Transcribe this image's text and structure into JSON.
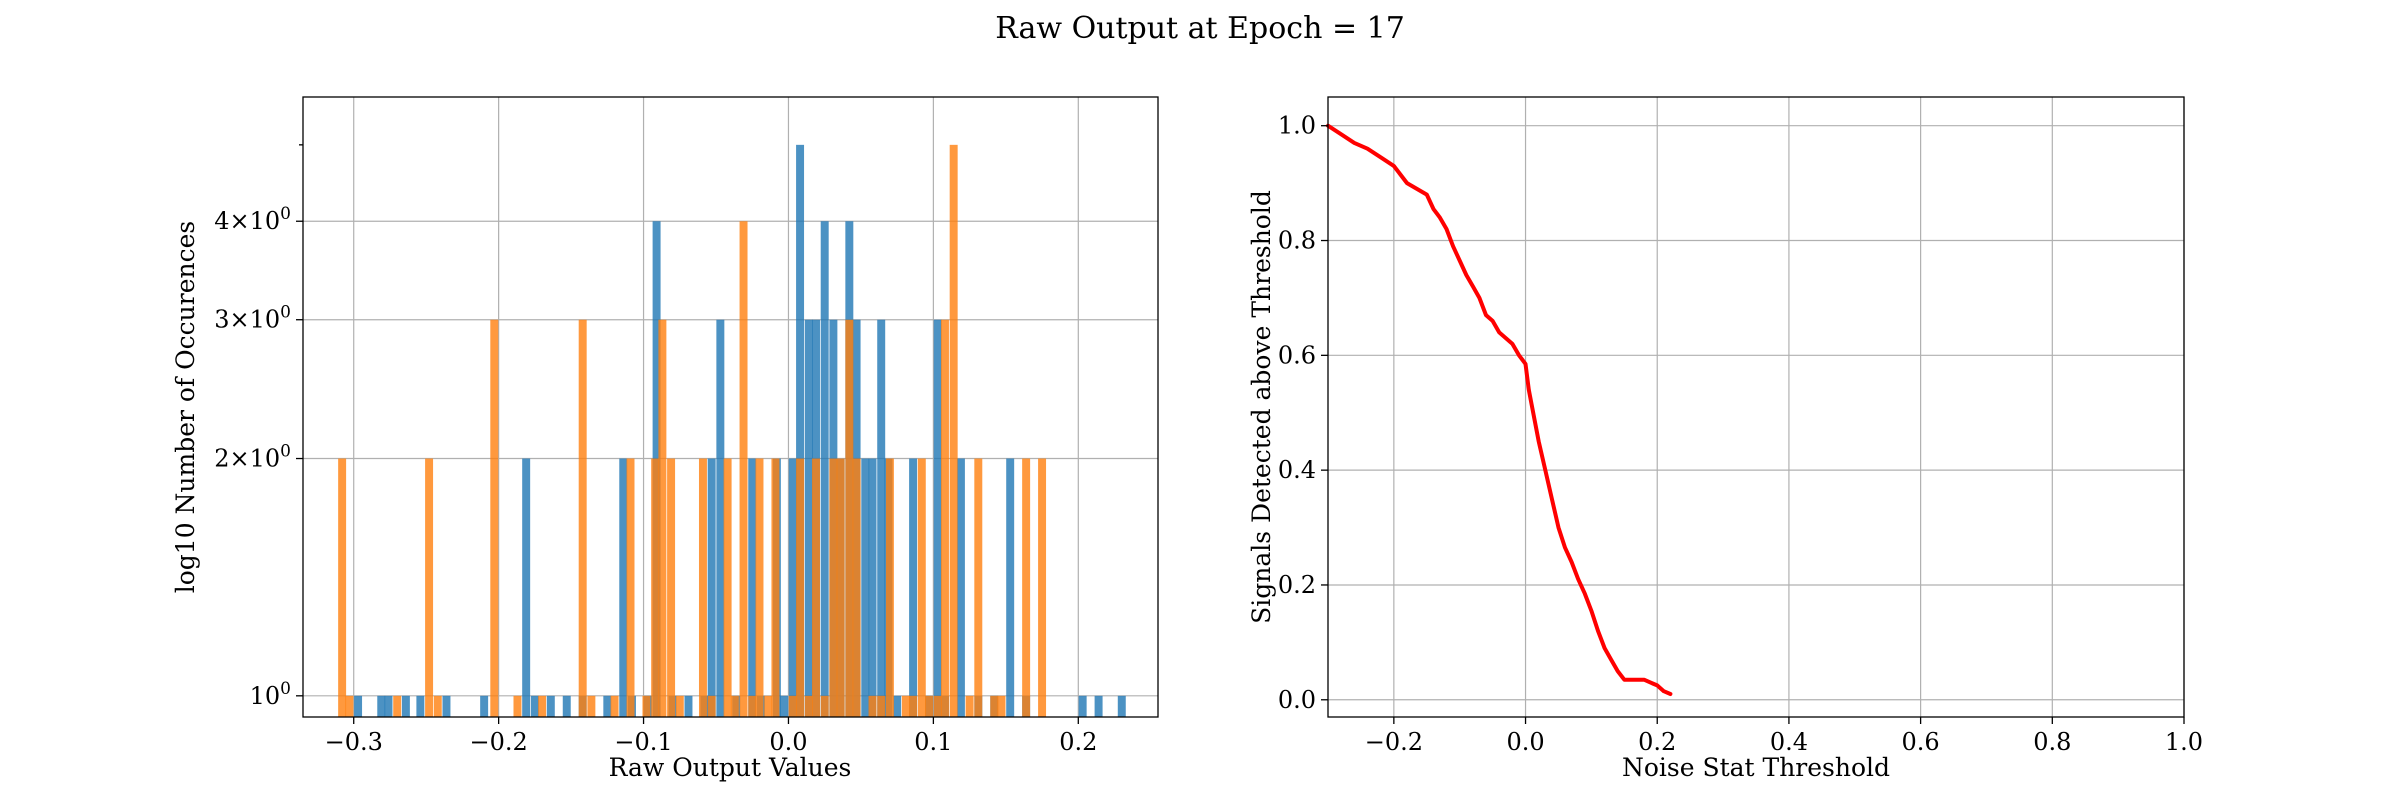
{
  "figure": {
    "suptitle": "Raw Output at Epoch = 17"
  },
  "colors": {
    "series_a": "#1f77b4",
    "series_b": "#ff7f0e",
    "line": "#ff0000",
    "grid": "#b0b0b0"
  },
  "chart_data": [
    {
      "type": "bar",
      "subtype": "histogram",
      "xlabel": "Raw Output Values",
      "ylabel": "log10 Number of Occurences",
      "yscale": "log",
      "xlim": [
        -0.335,
        0.255
      ],
      "ylim": [
        0.94,
        5.75
      ],
      "bin_width": 0.0055,
      "grid": true,
      "x_ticks": [
        {
          "v": -0.3,
          "label": "−0.3"
        },
        {
          "v": -0.2,
          "label": "−0.2"
        },
        {
          "v": -0.1,
          "label": "−0.1"
        },
        {
          "v": 0.0,
          "label": "0.0"
        },
        {
          "v": 0.1,
          "label": "0.1"
        },
        {
          "v": 0.2,
          "label": "0.2"
        }
      ],
      "y_ticks": [
        {
          "v": 1,
          "label": "10⁰",
          "mantissa": ""
        },
        {
          "v": 2,
          "label": "2×10⁰",
          "mantissa": "2×"
        },
        {
          "v": 3,
          "label": "3×10⁰",
          "mantissa": "3×"
        },
        {
          "v": 4,
          "label": "4×10⁰",
          "mantissa": "4×"
        }
      ],
      "series": [
        {
          "color": "#1f77b4",
          "bins": [
            {
              "x": -0.297,
              "count": 1
            },
            {
              "x": -0.281,
              "count": 1
            },
            {
              "x": -0.276,
              "count": 1
            },
            {
              "x": -0.264,
              "count": 1
            },
            {
              "x": -0.254,
              "count": 1
            },
            {
              "x": -0.236,
              "count": 1
            },
            {
              "x": -0.21,
              "count": 1
            },
            {
              "x": -0.181,
              "count": 2
            },
            {
              "x": -0.175,
              "count": 1
            },
            {
              "x": -0.164,
              "count": 1
            },
            {
              "x": -0.153,
              "count": 1
            },
            {
              "x": -0.142,
              "count": 1
            },
            {
              "x": -0.125,
              "count": 1
            },
            {
              "x": -0.114,
              "count": 2
            },
            {
              "x": -0.108,
              "count": 1
            },
            {
              "x": -0.097,
              "count": 1
            },
            {
              "x": -0.091,
              "count": 4
            },
            {
              "x": -0.08,
              "count": 1
            },
            {
              "x": -0.069,
              "count": 1
            },
            {
              "x": -0.058,
              "count": 1
            },
            {
              "x": -0.053,
              "count": 2
            },
            {
              "x": -0.047,
              "count": 3
            },
            {
              "x": -0.036,
              "count": 1
            },
            {
              "x": -0.025,
              "count": 2
            },
            {
              "x": -0.019,
              "count": 1
            },
            {
              "x": -0.008,
              "count": 2
            },
            {
              "x": -0.003,
              "count": 1
            },
            {
              "x": 0.003,
              "count": 2
            },
            {
              "x": 0.008,
              "count": 5
            },
            {
              "x": 0.014,
              "count": 3
            },
            {
              "x": 0.019,
              "count": 3
            },
            {
              "x": 0.025,
              "count": 4
            },
            {
              "x": 0.031,
              "count": 3
            },
            {
              "x": 0.036,
              "count": 2
            },
            {
              "x": 0.042,
              "count": 4
            },
            {
              "x": 0.047,
              "count": 3
            },
            {
              "x": 0.053,
              "count": 2
            },
            {
              "x": 0.058,
              "count": 2
            },
            {
              "x": 0.064,
              "count": 3
            },
            {
              "x": 0.069,
              "count": 2
            },
            {
              "x": 0.075,
              "count": 1
            },
            {
              "x": 0.086,
              "count": 2
            },
            {
              "x": 0.097,
              "count": 1
            },
            {
              "x": 0.103,
              "count": 3
            },
            {
              "x": 0.108,
              "count": 1
            },
            {
              "x": 0.119,
              "count": 2
            },
            {
              "x": 0.131,
              "count": 1
            },
            {
              "x": 0.142,
              "count": 1
            },
            {
              "x": 0.153,
              "count": 2
            },
            {
              "x": 0.164,
              "count": 1
            },
            {
              "x": 0.203,
              "count": 1
            },
            {
              "x": 0.214,
              "count": 1
            },
            {
              "x": 0.23,
              "count": 1
            }
          ]
        },
        {
          "color": "#ff7f0e",
          "bins": [
            {
              "x": -0.308,
              "count": 2
            },
            {
              "x": -0.303,
              "count": 1
            },
            {
              "x": -0.27,
              "count": 1
            },
            {
              "x": -0.248,
              "count": 2
            },
            {
              "x": -0.242,
              "count": 1
            },
            {
              "x": -0.203,
              "count": 3
            },
            {
              "x": -0.187,
              "count": 1
            },
            {
              "x": -0.17,
              "count": 1
            },
            {
              "x": -0.142,
              "count": 3
            },
            {
              "x": -0.136,
              "count": 1
            },
            {
              "x": -0.12,
              "count": 1
            },
            {
              "x": -0.109,
              "count": 2
            },
            {
              "x": -0.098,
              "count": 1
            },
            {
              "x": -0.092,
              "count": 2
            },
            {
              "x": -0.087,
              "count": 3
            },
            {
              "x": -0.081,
              "count": 2
            },
            {
              "x": -0.075,
              "count": 1
            },
            {
              "x": -0.059,
              "count": 2
            },
            {
              "x": -0.053,
              "count": 1
            },
            {
              "x": -0.042,
              "count": 2
            },
            {
              "x": -0.037,
              "count": 1
            },
            {
              "x": -0.031,
              "count": 4
            },
            {
              "x": -0.025,
              "count": 1
            },
            {
              "x": -0.02,
              "count": 2
            },
            {
              "x": -0.014,
              "count": 1
            },
            {
              "x": -0.009,
              "count": 2
            },
            {
              "x": 0.003,
              "count": 1
            },
            {
              "x": 0.008,
              "count": 2
            },
            {
              "x": 0.014,
              "count": 1
            },
            {
              "x": 0.019,
              "count": 2
            },
            {
              "x": 0.025,
              "count": 1
            },
            {
              "x": 0.031,
              "count": 2
            },
            {
              "x": 0.036,
              "count": 2
            },
            {
              "x": 0.042,
              "count": 3
            },
            {
              "x": 0.047,
              "count": 2
            },
            {
              "x": 0.058,
              "count": 1
            },
            {
              "x": 0.064,
              "count": 1
            },
            {
              "x": 0.07,
              "count": 2
            },
            {
              "x": 0.081,
              "count": 1
            },
            {
              "x": 0.086,
              "count": 1
            },
            {
              "x": 0.092,
              "count": 2
            },
            {
              "x": 0.097,
              "count": 1
            },
            {
              "x": 0.103,
              "count": 1
            },
            {
              "x": 0.108,
              "count": 3
            },
            {
              "x": 0.114,
              "count": 5
            },
            {
              "x": 0.125,
              "count": 1
            },
            {
              "x": 0.131,
              "count": 2
            },
            {
              "x": 0.142,
              "count": 1
            },
            {
              "x": 0.147,
              "count": 1
            },
            {
              "x": 0.164,
              "count": 2
            },
            {
              "x": 0.175,
              "count": 2
            }
          ]
        }
      ]
    },
    {
      "type": "line",
      "xlabel": "Noise Stat Threshold",
      "ylabel": "Signals Detected above Threshold",
      "xlim": [
        -0.3,
        1.0
      ],
      "ylim": [
        -0.03,
        1.05
      ],
      "grid": true,
      "x_ticks": [
        {
          "v": -0.2,
          "label": "−0.2"
        },
        {
          "v": 0.0,
          "label": "0.0"
        },
        {
          "v": 0.2,
          "label": "0.2"
        },
        {
          "v": 0.4,
          "label": "0.4"
        },
        {
          "v": 0.6,
          "label": "0.6"
        },
        {
          "v": 0.8,
          "label": "0.8"
        },
        {
          "v": 1.0,
          "label": "1.0"
        }
      ],
      "y_ticks": [
        {
          "v": 0.0,
          "label": "0.0"
        },
        {
          "v": 0.2,
          "label": "0.2"
        },
        {
          "v": 0.4,
          "label": "0.4"
        },
        {
          "v": 0.6,
          "label": "0.6"
        },
        {
          "v": 0.8,
          "label": "0.8"
        },
        {
          "v": 1.0,
          "label": "1.0"
        }
      ],
      "series": [
        {
          "color": "#ff0000",
          "x": [
            -0.3,
            -0.28,
            -0.26,
            -0.24,
            -0.22,
            -0.2,
            -0.18,
            -0.165,
            -0.15,
            -0.14,
            -0.13,
            -0.12,
            -0.11,
            -0.1,
            -0.09,
            -0.08,
            -0.07,
            -0.06,
            -0.05,
            -0.045,
            -0.04,
            -0.03,
            -0.02,
            -0.01,
            0.0,
            0.005,
            0.01,
            0.02,
            0.03,
            0.04,
            0.05,
            0.06,
            0.07,
            0.08,
            0.09,
            0.1,
            0.11,
            0.12,
            0.13,
            0.14,
            0.15,
            0.16,
            0.18,
            0.19,
            0.2,
            0.21,
            0.22
          ],
          "y": [
            1.0,
            0.985,
            0.97,
            0.96,
            0.945,
            0.93,
            0.9,
            0.89,
            0.88,
            0.855,
            0.84,
            0.82,
            0.79,
            0.765,
            0.74,
            0.72,
            0.7,
            0.67,
            0.66,
            0.65,
            0.64,
            0.63,
            0.62,
            0.6,
            0.585,
            0.54,
            0.51,
            0.45,
            0.4,
            0.35,
            0.3,
            0.265,
            0.24,
            0.21,
            0.185,
            0.155,
            0.12,
            0.09,
            0.07,
            0.05,
            0.035,
            0.035,
            0.035,
            0.03,
            0.025,
            0.015,
            0.01
          ]
        }
      ]
    }
  ]
}
